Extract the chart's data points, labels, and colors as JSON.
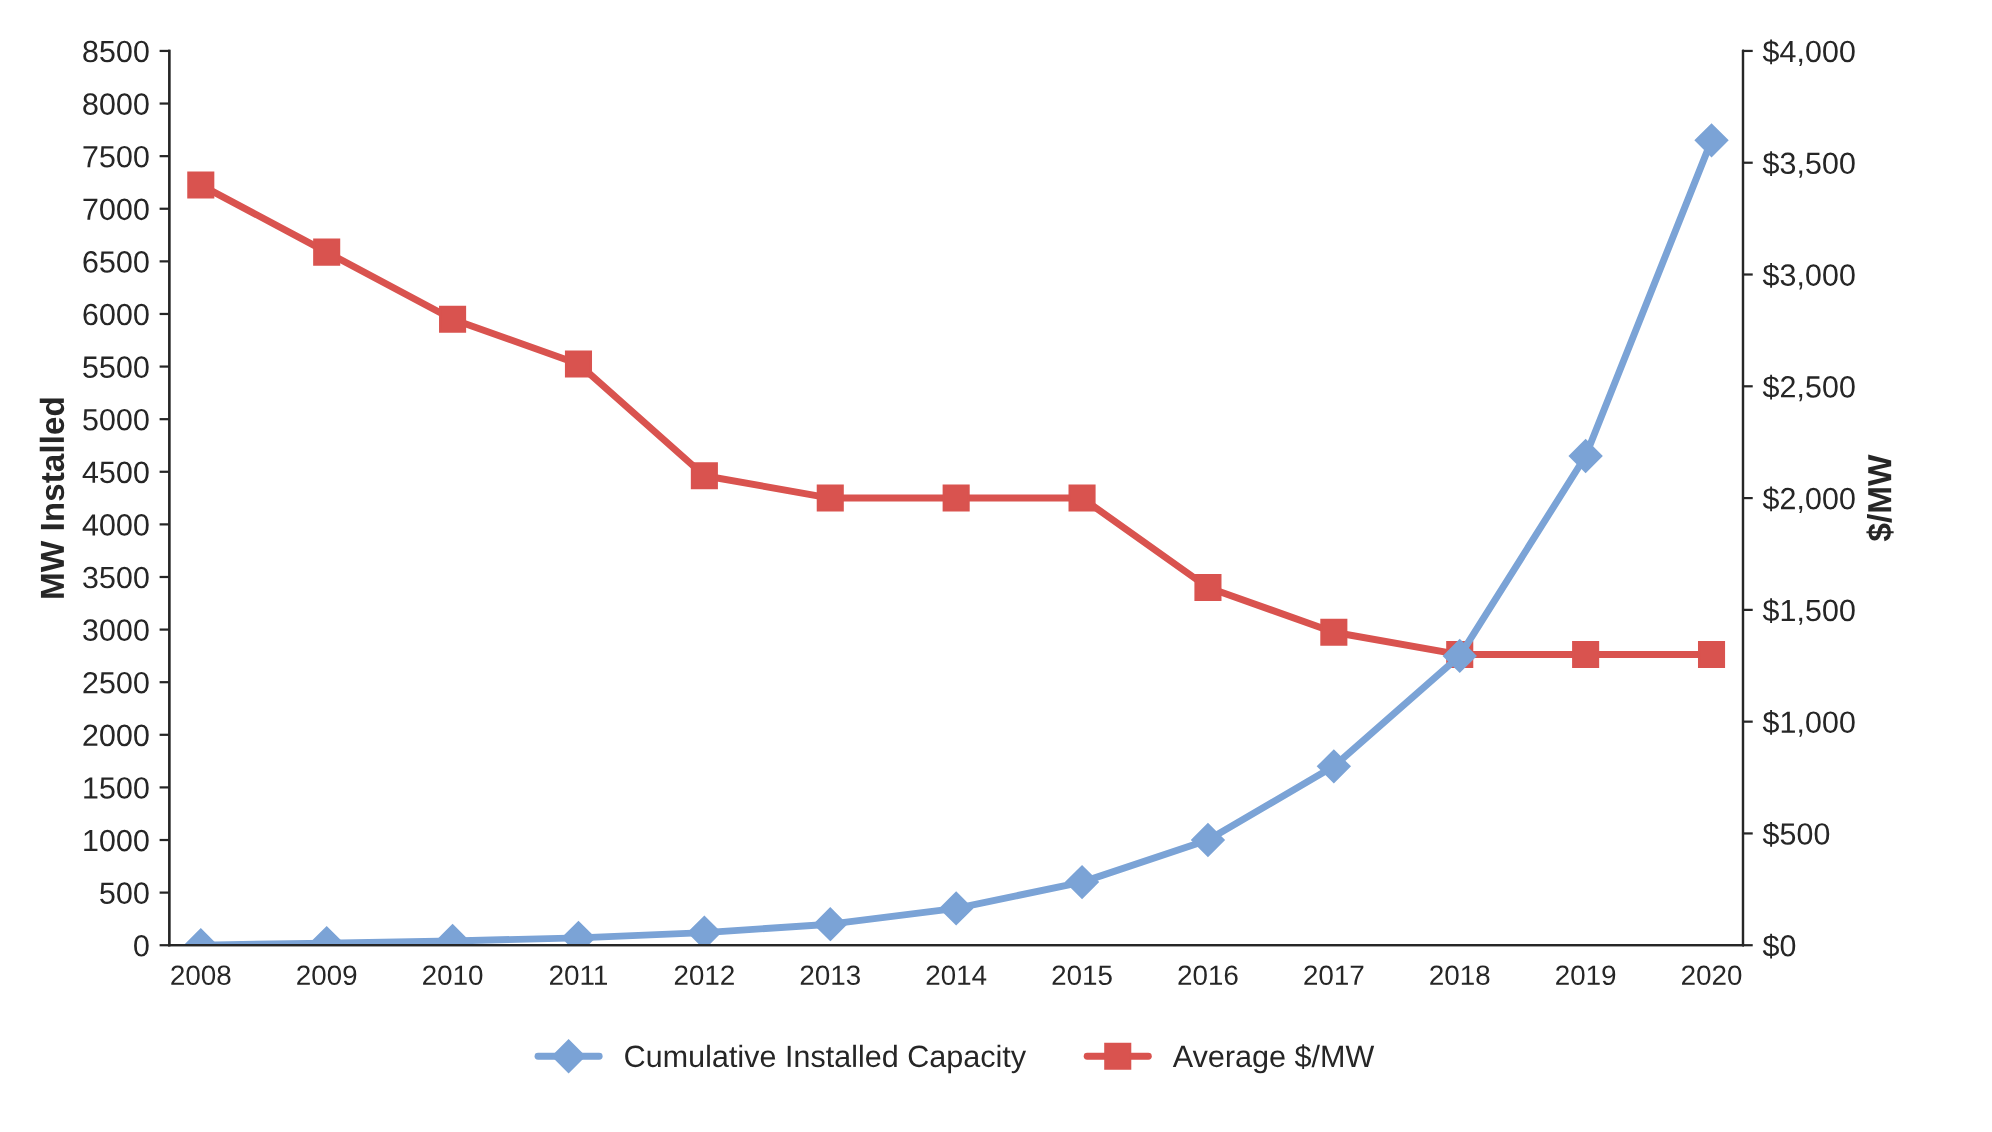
{
  "chart_data": {
    "type": "line",
    "categories": [
      "2008",
      "2009",
      "2010",
      "2011",
      "2012",
      "2013",
      "2014",
      "2015",
      "2016",
      "2017",
      "2018",
      "2019",
      "2020"
    ],
    "ylabel": "MW Installed",
    "y2label": "$/MW",
    "series": [
      {
        "name": "Cumulative Installed Capacity",
        "color": "#7ba3d6",
        "marker": "diamond",
        "values": [
          0,
          20,
          40,
          70,
          120,
          200,
          350,
          600,
          1000,
          1700,
          2750,
          4650,
          7650
        ]
      },
      {
        "name": "Average $/MW",
        "color": "#d9534f",
        "marker": "square",
        "axis": "y2",
        "values": [
          3400,
          3100,
          2800,
          2600,
          2100,
          2000,
          2000,
          2000,
          1600,
          1400,
          1300,
          1300,
          1300
        ]
      }
    ],
    "ylim": [
      0,
      8500
    ],
    "yticks": [
      0,
      500,
      1000,
      1500,
      2000,
      2500,
      3000,
      3500,
      4000,
      4500,
      5000,
      5500,
      6000,
      6500,
      7000,
      7500,
      8000,
      8500
    ],
    "y2lim": [
      0,
      4000
    ],
    "y2ticks": [
      {
        "value": 0,
        "label": "$0"
      },
      {
        "value": 500,
        "label": "$500"
      },
      {
        "value": 1000,
        "label": "$1,000"
      },
      {
        "value": 1500,
        "label": "$1,500"
      },
      {
        "value": 2000,
        "label": "$2,000"
      },
      {
        "value": 2500,
        "label": "$2,500"
      },
      {
        "value": 3000,
        "label": "$3,000"
      },
      {
        "value": 3500,
        "label": "$3,500"
      },
      {
        "value": 4000,
        "label": "$4,000"
      }
    ],
    "grid": false,
    "legend": "bottom",
    "line_style": "solid"
  }
}
